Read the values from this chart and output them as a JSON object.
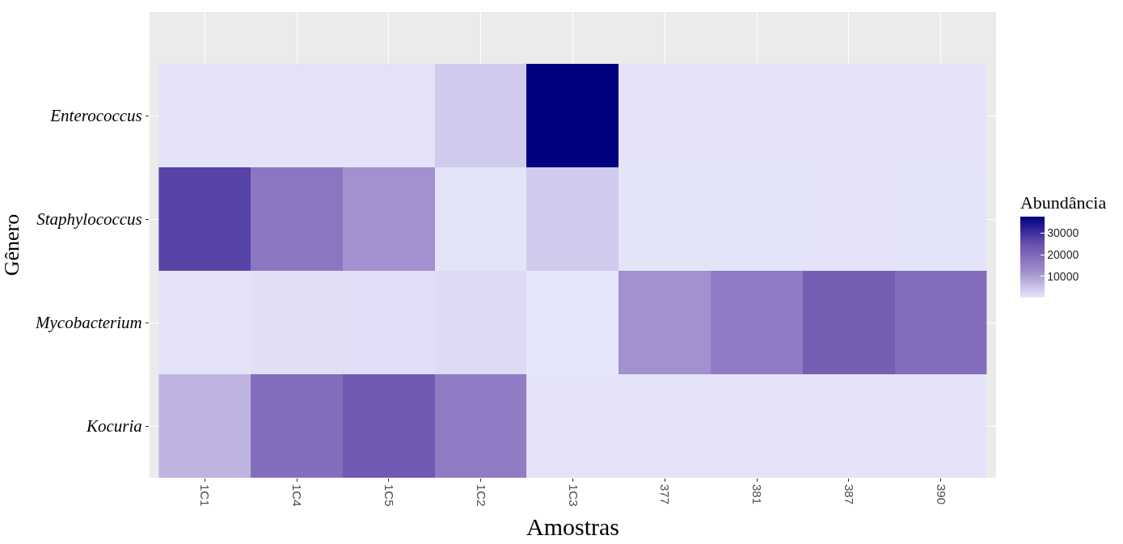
{
  "chart_data": {
    "type": "heatmap",
    "xlabel": "Amostras",
    "ylabel": "Gênero",
    "clabel": "Abundância",
    "categories": [
      "1C1",
      "1C4",
      "1C5",
      "1C2",
      "1C3",
      "377",
      "381",
      "387",
      "390"
    ],
    "y_categories": [
      "Enterococcus",
      "Staphylococcus",
      "Mycobacterium",
      "Kocuria"
    ],
    "cells": [
      [
        800,
        800,
        800,
        4000,
        37600,
        600,
        600,
        600,
        600
      ],
      [
        27000,
        17000,
        12000,
        500,
        4000,
        500,
        500,
        700,
        500
      ],
      [
        700,
        1200,
        1300,
        1800,
        200,
        12000,
        16000,
        22000,
        19000
      ],
      [
        7000,
        19000,
        23000,
        16000,
        600,
        600,
        600,
        600,
        600
      ]
    ],
    "clim": [
      200,
      37600
    ],
    "cticks": [
      10000,
      20000,
      30000
    ],
    "colors": [
      "#e6e6fa",
      "#000080"
    ],
    "grid": true
  }
}
